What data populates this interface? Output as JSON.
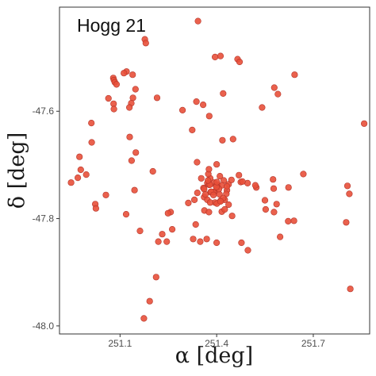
{
  "chart_data": {
    "type": "scatter",
    "title": "Hogg 21",
    "xlabel": "α [deg]",
    "ylabel": "δ [deg]",
    "xlim": [
      250.912,
      251.875
    ],
    "ylim": [
      -48.015,
      -47.406
    ],
    "x_ticks": [
      251.1,
      251.4,
      251.7
    ],
    "x_tick_labels": [
      "251.1",
      "251.4",
      "251.7"
    ],
    "y_ticks": [
      -47.6,
      -47.8,
      -48.0
    ],
    "y_tick_labels": [
      "-47.6",
      "-47.8",
      "-48.0"
    ],
    "grid": false,
    "legend": "none",
    "point_color": "#e8503a",
    "point_stroke": "#b5352a",
    "x": [
      251.342,
      251.177,
      251.18,
      251.12,
      251.112,
      251.139,
      251.412,
      251.395,
      251.465,
      251.471,
      251.579,
      251.642,
      251.59,
      251.541,
      251.42,
      251.337,
      251.358,
      251.377,
      251.324,
      251.418,
      251.371,
      251.294,
      251.215,
      251.148,
      251.14,
      251.135,
      251.13,
      251.079,
      251.081,
      251.084,
      251.089,
      251.064,
      251.08,
      251.081,
      251.129,
      251.011,
      251.149,
      251.136,
      251.012,
      250.978,
      250.995,
      250.948,
      250.969,
      250.974,
      251.056,
      251.023,
      251.025,
      251.119,
      251.162,
      251.145,
      251.202,
      251.339,
      251.352,
      251.38,
      251.392,
      251.469,
      251.475,
      251.496,
      251.523,
      251.575,
      251.623,
      251.669,
      251.622,
      251.806,
      251.812,
      251.858,
      251.802,
      251.815,
      251.586,
      251.577,
      251.578,
      251.64,
      251.597,
      251.55,
      251.552,
      251.497,
      251.359,
      251.34,
      251.331,
      251.312,
      251.257,
      251.249,
      251.231,
      251.212,
      251.192,
      251.174,
      251.219,
      251.245,
      251.335,
      251.262,
      251.327,
      251.349,
      251.369,
      251.4,
      251.416,
      251.376,
      251.361,
      251.394,
      251.362,
      251.39,
      251.412,
      251.41,
      251.422,
      251.437,
      251.381,
      251.409,
      251.403,
      251.425,
      251.395,
      251.432,
      251.401,
      251.376,
      251.371,
      251.361,
      251.38,
      251.417,
      251.43,
      251.432,
      251.402,
      251.425,
      251.379,
      251.374,
      251.398,
      251.365,
      251.373,
      251.42,
      251.446,
      251.448,
      251.407,
      251.399,
      251.437,
      251.4,
      251.376,
      251.383,
      251.401,
      251.412,
      251.39,
      251.451,
      251.52,
      251.48,
      251.477
    ],
    "y": [
      -47.432,
      -47.466,
      -47.473,
      -47.526,
      -47.529,
      -47.532,
      -47.497,
      -47.499,
      -47.503,
      -47.508,
      -47.556,
      -47.532,
      -47.568,
      -47.593,
      -47.567,
      -47.582,
      -47.588,
      -47.609,
      -47.635,
      -47.654,
      -47.734,
      -47.598,
      -47.575,
      -47.559,
      -47.575,
      -47.585,
      -47.648,
      -47.538,
      -47.542,
      -47.546,
      -47.55,
      -47.576,
      -47.586,
      -47.596,
      -47.593,
      -47.622,
      -47.677,
      -47.692,
      -47.658,
      -47.709,
      -47.718,
      -47.733,
      -47.724,
      -47.685,
      -47.756,
      -47.773,
      -47.781,
      -47.792,
      -47.823,
      -47.747,
      -47.712,
      -47.695,
      -47.725,
      -47.725,
      -47.733,
      -47.719,
      -47.732,
      -47.734,
      -47.742,
      -47.727,
      -47.742,
      -47.717,
      -47.805,
      -47.739,
      -47.754,
      -47.623,
      -47.807,
      -47.931,
      -47.773,
      -47.744,
      -47.788,
      -47.804,
      -47.834,
      -47.766,
      -47.783,
      -47.859,
      -47.743,
      -47.752,
      -47.765,
      -47.771,
      -47.788,
      -47.79,
      -47.829,
      -47.909,
      -47.954,
      -47.986,
      -47.843,
      -47.843,
      -47.811,
      -47.82,
      -47.838,
      -47.843,
      -47.838,
      -47.845,
      -47.787,
      -47.737,
      -47.76,
      -47.75,
      -47.785,
      -47.751,
      -47.767,
      -47.721,
      -47.729,
      -47.736,
      -47.751,
      -47.755,
      -47.737,
      -47.765,
      -47.77,
      -47.747,
      -47.772,
      -47.788,
      -47.765,
      -47.745,
      -47.77,
      -47.738,
      -47.754,
      -47.74,
      -47.742,
      -47.783,
      -47.737,
      -47.717,
      -47.739,
      -47.755,
      -47.729,
      -47.762,
      -47.728,
      -47.795,
      -47.745,
      -47.741,
      -47.774,
      -47.699,
      -47.708,
      -47.75,
      -47.732,
      -47.768,
      -47.756,
      -47.652,
      -47.738,
      -47.731,
      -47.845
    ]
  }
}
